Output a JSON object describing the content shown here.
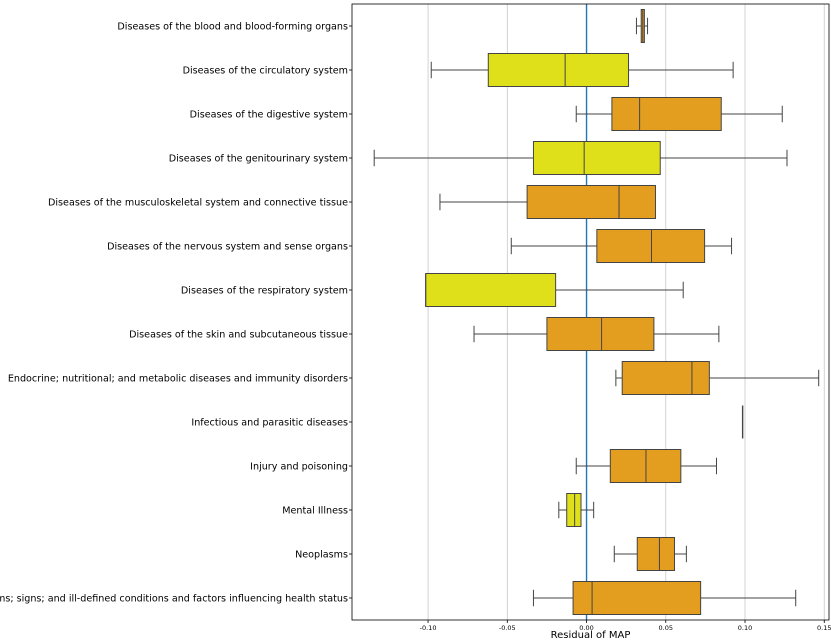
{
  "chart_data": {
    "type": "boxplot",
    "orientation": "horizontal",
    "xlabel": "Residual of MAP",
    "xlim": [
      -0.148,
      0.153
    ],
    "xticks": [
      -0.1,
      -0.05,
      0.0,
      0.05,
      0.1,
      0.15
    ],
    "xtick_labels": [
      "-0.10",
      "-0.05",
      "0.00",
      "0.05",
      "0.10",
      "0.15"
    ],
    "grid": "vertical",
    "reference_line": {
      "x": 0.0,
      "color": "#1f77b4"
    },
    "colors": {
      "orange": "#e49e1f",
      "yellow": "#e0e01a",
      "edge": "#444444"
    },
    "categories": [
      {
        "label": "Diseases of the blood and blood-forming organs",
        "color": "orange",
        "whisker_low": 0.0315,
        "q1": 0.0345,
        "median": 0.0355,
        "q3": 0.0365,
        "whisker_high": 0.0385
      },
      {
        "label": "Diseases of the circulatory system",
        "color": "yellow",
        "whisker_low": -0.098,
        "q1": -0.062,
        "median": -0.0135,
        "q3": 0.0265,
        "whisker_high": 0.0925
      },
      {
        "label": "Diseases of the digestive system",
        "color": "orange",
        "whisker_low": -0.0065,
        "q1": 0.016,
        "median": 0.0335,
        "q3": 0.085,
        "whisker_high": 0.1235
      },
      {
        "label": "Diseases of the genitourinary system",
        "color": "yellow",
        "whisker_low": -0.134,
        "q1": -0.0335,
        "median": -0.0015,
        "q3": 0.0465,
        "whisker_high": 0.1265
      },
      {
        "label": "Diseases of the musculoskeletal system and connective tissue",
        "color": "orange",
        "whisker_low": -0.0925,
        "q1": -0.0375,
        "median": 0.0205,
        "q3": 0.0435,
        "whisker_high": 0.0435
      },
      {
        "label": "Diseases of the nervous system and sense organs",
        "color": "orange",
        "whisker_low": -0.0475,
        "q1": 0.0065,
        "median": 0.041,
        "q3": 0.0745,
        "whisker_high": 0.0915
      },
      {
        "label": "Diseases of the respiratory system",
        "color": "yellow",
        "whisker_low": -0.1015,
        "q1": -0.1015,
        "median": -0.1015,
        "q3": -0.0195,
        "whisker_high": 0.061
      },
      {
        "label": "Diseases of the skin and subcutaneous tissue",
        "color": "orange",
        "whisker_low": -0.071,
        "q1": -0.025,
        "median": 0.0095,
        "q3": 0.0425,
        "whisker_high": 0.0835
      },
      {
        "label": "Endocrine; nutritional; and metabolic diseases and immunity disorders",
        "color": "orange",
        "whisker_low": 0.0185,
        "q1": 0.0225,
        "median": 0.0665,
        "q3": 0.0775,
        "whisker_high": 0.1465
      },
      {
        "label": "Infectious and parasitic diseases",
        "color": "orange",
        "whisker_low": 0.0985,
        "q1": 0.0985,
        "median": 0.0985,
        "q3": 0.0985,
        "whisker_high": 0.0985
      },
      {
        "label": "Injury and poisoning",
        "color": "orange",
        "whisker_low": -0.0065,
        "q1": 0.015,
        "median": 0.0375,
        "q3": 0.0595,
        "whisker_high": 0.082
      },
      {
        "label": "Mental Illness",
        "color": "yellow",
        "whisker_low": -0.0175,
        "q1": -0.0125,
        "median": -0.0075,
        "q3": -0.0035,
        "whisker_high": 0.0045
      },
      {
        "label": "Neoplasms",
        "color": "orange",
        "whisker_low": 0.0175,
        "q1": 0.032,
        "median": 0.046,
        "q3": 0.0555,
        "whisker_high": 0.063
      },
      {
        "label": "Symptoms; signs; and ill-defined conditions and factors influencing health status",
        "color": "orange",
        "whisker_low": -0.0335,
        "q1": -0.0085,
        "median": 0.0035,
        "q3": 0.072,
        "whisker_high": 0.132
      }
    ]
  }
}
